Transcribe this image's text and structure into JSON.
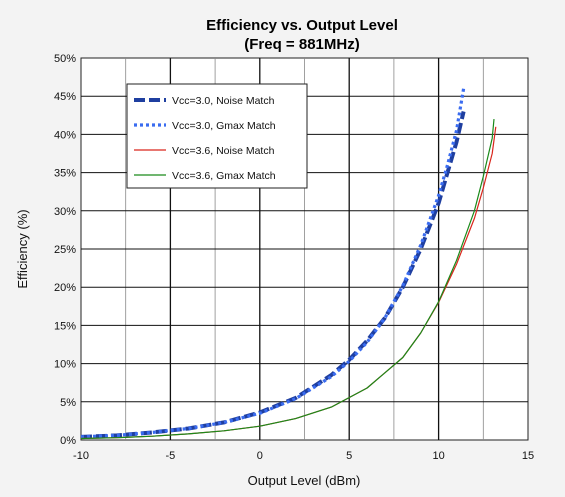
{
  "chart_data": {
    "type": "line",
    "title": "Efficiency vs. Output Level",
    "subtitle": "(Freq = 881MHz)",
    "xlabel": "Output Level (dBm)",
    "ylabel": "Efficiency (%)",
    "xlim": [
      -10,
      15
    ],
    "ylim": [
      0,
      50
    ],
    "xticks": [
      -10,
      -5,
      0,
      5,
      10,
      15
    ],
    "yticks": [
      0,
      5,
      10,
      15,
      20,
      25,
      30,
      35,
      40,
      45,
      50
    ],
    "xtick_labels": [
      "-10",
      "-5",
      "0",
      "5",
      "10",
      "15"
    ],
    "ytick_labels": [
      "0%",
      "5%",
      "10%",
      "15%",
      "20%",
      "25%",
      "30%",
      "35%",
      "40%",
      "45%",
      "50%"
    ],
    "grid": true,
    "legend_position": "top-left",
    "series": [
      {
        "name": "Vcc=3.0, Noise Match",
        "color": "#1f3fa0",
        "style": "dashed",
        "x": [
          -10,
          -8,
          -6,
          -4,
          -2,
          0,
          2,
          4,
          5,
          6,
          7,
          8,
          9,
          10,
          10.5,
          11,
          11.4
        ],
        "y": [
          0.4,
          0.6,
          1.0,
          1.5,
          2.3,
          3.6,
          5.5,
          8.5,
          10.5,
          13.0,
          16.0,
          20.0,
          25.0,
          31.0,
          35.0,
          39.0,
          43.0
        ]
      },
      {
        "name": "Vcc=3.0, Gmax Match",
        "color": "#3a6cf0",
        "style": "dotted",
        "x": [
          -10,
          -8,
          -6,
          -4,
          -2,
          0,
          2,
          4,
          5,
          6,
          7,
          8,
          9,
          10,
          10.5,
          11,
          11.4
        ],
        "y": [
          0.4,
          0.6,
          1.0,
          1.5,
          2.3,
          3.5,
          5.4,
          8.3,
          10.3,
          12.8,
          16.0,
          20.2,
          25.5,
          32.0,
          36.0,
          40.5,
          46.0
        ]
      },
      {
        "name": "Vcc=3.6, Noise Match",
        "color": "#d9261c",
        "style": "solid",
        "x": [
          -10,
          -8,
          -6,
          -4,
          -2,
          0,
          2,
          4,
          6,
          8,
          9,
          10,
          11,
          12,
          12.5,
          13,
          13.2
        ],
        "y": [
          0.2,
          0.3,
          0.5,
          0.8,
          1.2,
          1.8,
          2.8,
          4.3,
          6.8,
          10.8,
          14.0,
          18.0,
          23.0,
          29.0,
          33.0,
          37.5,
          41.0
        ]
      },
      {
        "name": "Vcc=3.6, Gmax Match",
        "color": "#1a8a1a",
        "style": "solid",
        "x": [
          -10,
          -8,
          -6,
          -4,
          -2,
          0,
          2,
          4,
          6,
          8,
          9,
          10,
          11,
          12,
          12.5,
          13,
          13.1
        ],
        "y": [
          0.2,
          0.3,
          0.5,
          0.8,
          1.2,
          1.8,
          2.8,
          4.3,
          6.8,
          10.8,
          14.0,
          18.1,
          23.5,
          30.0,
          34.5,
          39.5,
          42.0
        ]
      }
    ]
  }
}
